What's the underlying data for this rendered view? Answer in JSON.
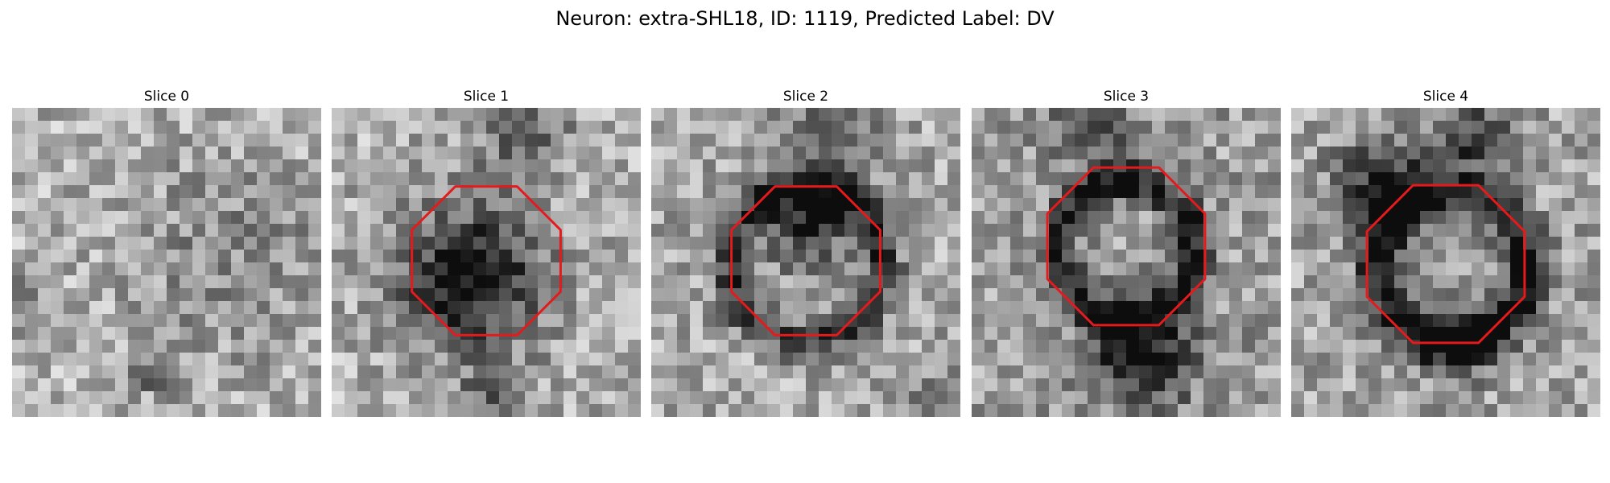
{
  "figure": {
    "title": "Neuron: extra-SHL18, ID: 1119, Predicted Label: DV"
  },
  "colors": {
    "roi_outline": "#e41a1c",
    "background": "#ffffff"
  },
  "panels": [
    {
      "title": "Slice 0",
      "has_roi": false
    },
    {
      "title": "Slice 1",
      "has_roi": true
    },
    {
      "title": "Slice 2",
      "has_roi": true
    },
    {
      "title": "Slice 3",
      "has_roi": true
    },
    {
      "title": "Slice 4",
      "has_roi": true
    }
  ]
}
